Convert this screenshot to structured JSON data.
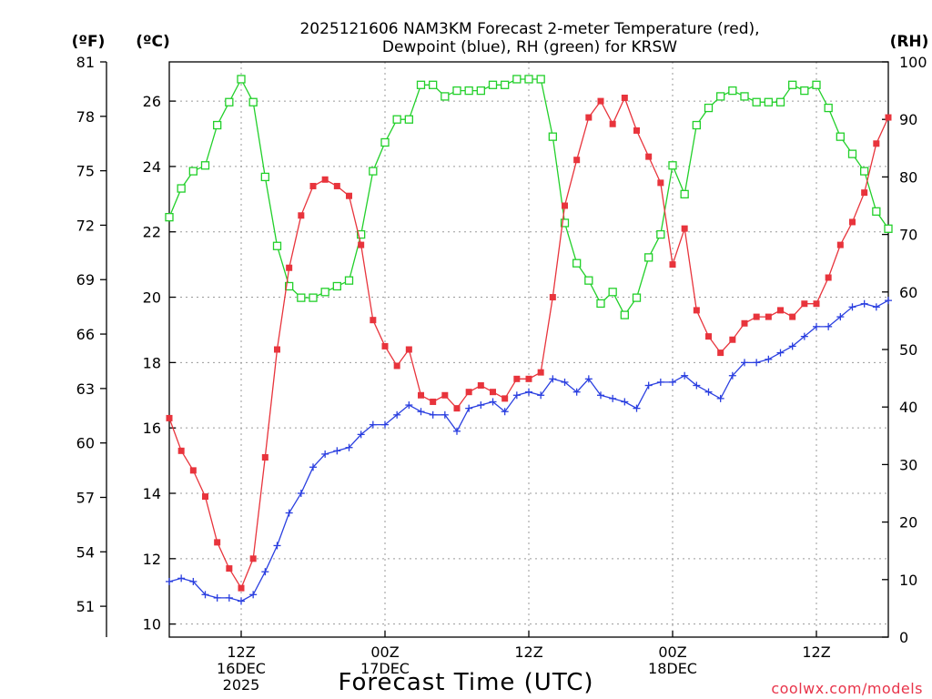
{
  "chart_data": {
    "type": "line",
    "title": [
      "2025121606 NAM3KM Forecast 2-meter Temperature (red),",
      "Dewpoint (blue), RH (green) for KRSW"
    ],
    "xlabel": "Forecast Time (UTC)",
    "units": {
      "fahrenheit": "(ºF)",
      "celsius": "(ºC)",
      "rh": "(RH)"
    },
    "x_hours": [
      6,
      7,
      8,
      9,
      10,
      11,
      12,
      13,
      14,
      15,
      16,
      17,
      18,
      19,
      20,
      21,
      22,
      23,
      24,
      25,
      26,
      27,
      28,
      29,
      30,
      31,
      32,
      33,
      34,
      35,
      36,
      37,
      38,
      39,
      40,
      41,
      42,
      43,
      44,
      45,
      46,
      47,
      48,
      49,
      50,
      51,
      52,
      53,
      54,
      55,
      56,
      57,
      58,
      59,
      60,
      61,
      62,
      63,
      64,
      65,
      66
    ],
    "x_range": [
      6,
      66
    ],
    "x_ticks": [
      {
        "hour": 12,
        "lines": [
          "12Z",
          "16DEC",
          "2025"
        ]
      },
      {
        "hour": 24,
        "lines": [
          "00Z",
          "17DEC"
        ]
      },
      {
        "hour": 36,
        "lines": [
          "12Z"
        ]
      },
      {
        "hour": 48,
        "lines": [
          "00Z",
          "18DEC"
        ]
      },
      {
        "hour": 60,
        "lines": [
          "12Z"
        ]
      }
    ],
    "celsius_axis": {
      "range": [
        9.6,
        27.2
      ],
      "ticks": [
        10,
        12,
        14,
        16,
        18,
        20,
        22,
        24,
        26
      ]
    },
    "fahrenheit_axis": {
      "range": [
        49.3,
        81
      ],
      "ticks": [
        51,
        54,
        57,
        60,
        63,
        66,
        69,
        72,
        75,
        78,
        81
      ]
    },
    "rh_axis": {
      "range": [
        0,
        100
      ],
      "ticks": [
        0,
        10,
        20,
        30,
        40,
        50,
        60,
        70,
        80,
        90,
        100
      ]
    },
    "series": [
      {
        "name": "Temperature",
        "units": "°C",
        "axis": "celsius",
        "color": "#e8343c",
        "marker": "filled-square",
        "values": [
          16.3,
          15.3,
          14.7,
          13.9,
          12.5,
          11.7,
          11.1,
          12.0,
          15.1,
          18.4,
          20.9,
          22.5,
          23.4,
          23.6,
          23.4,
          23.1,
          21.6,
          19.3,
          18.5,
          17.9,
          18.4,
          17.0,
          16.8,
          17.0,
          16.6,
          17.1,
          17.3,
          17.1,
          16.9,
          17.5,
          17.5,
          17.7,
          20.0,
          22.8,
          24.2,
          25.5,
          26.0,
          25.3,
          26.1,
          25.1,
          24.3,
          23.5,
          21.0,
          22.1,
          19.6,
          18.8,
          18.3,
          18.7,
          19.2,
          19.4,
          19.4,
          19.6,
          19.4,
          19.8,
          19.8,
          20.6,
          21.6,
          22.3,
          23.2,
          24.7,
          25.5
        ]
      },
      {
        "name": "Dewpoint",
        "units": "°C",
        "axis": "celsius",
        "color": "#2a3fe0",
        "marker": "plus",
        "values": [
          11.3,
          11.4,
          11.3,
          10.9,
          10.8,
          10.8,
          10.7,
          10.9,
          11.6,
          12.4,
          13.4,
          14.0,
          14.8,
          15.2,
          15.3,
          15.4,
          15.8,
          16.1,
          16.1,
          16.4,
          16.7,
          16.5,
          16.4,
          16.4,
          15.9,
          16.6,
          16.7,
          16.8,
          16.5,
          17.0,
          17.1,
          17.0,
          17.5,
          17.4,
          17.1,
          17.5,
          17.0,
          16.9,
          16.8,
          16.6,
          17.3,
          17.4,
          17.4,
          17.6,
          17.3,
          17.1,
          16.9,
          17.6,
          18.0,
          18.0,
          18.1,
          18.3,
          18.5,
          18.8,
          19.1,
          19.1,
          19.4,
          19.7,
          19.8,
          19.7,
          19.9
        ]
      },
      {
        "name": "RH",
        "units": "%",
        "axis": "rh",
        "color": "#22d02a",
        "marker": "open-square",
        "values": [
          73,
          78,
          81,
          82,
          89,
          93,
          97,
          93,
          80,
          68,
          61,
          59,
          59,
          60,
          61,
          62,
          70,
          81,
          86,
          90,
          90,
          96,
          96,
          94,
          95,
          95,
          95,
          96,
          96,
          97,
          97,
          97,
          87,
          72,
          65,
          62,
          58,
          60,
          56,
          59,
          66,
          70,
          82,
          77,
          89,
          92,
          94,
          95,
          94,
          93,
          93,
          93,
          96,
          95,
          96,
          92,
          87,
          84,
          81,
          74,
          71
        ]
      }
    ],
    "credit": "coolwx.com/models"
  }
}
